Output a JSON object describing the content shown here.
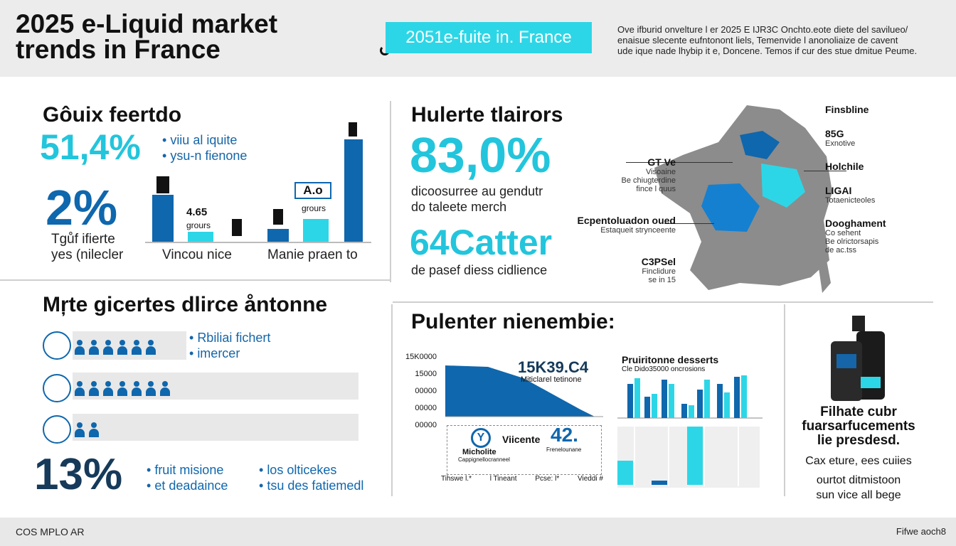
{
  "header": {
    "title_line1": "2025 e-Liquid market",
    "title_line2": "trends in France",
    "tag": "2051e-fuite in. France",
    "intro_lines": [
      "Ove ifburid onvelture l er 2025 E IJR3C Onchto.eote diete del savilueo/",
      "enaisue slecente eufntonont liels, Temenvide l anonoliaize de cavent",
      "ude ique nade lhybip it e, Doncene. Temos if cur des stue dmitue Peume."
    ]
  },
  "left_top": {
    "heading": "Gôuix feertdo",
    "stat1": "51,4%",
    "stat1_bullets": [
      "viiu al iquite",
      "ysu-n fienone"
    ],
    "stat2": "2%",
    "stat2_caption_lines": [
      "Tgůf ifierte",
      "yes (nilecler"
    ],
    "chart_labels": [
      "Vincou nice",
      "Manie praen to"
    ],
    "bar_note_value": "4.65",
    "bar_note_text": "grours",
    "badge_value": "A.o",
    "badge_text": "grours"
  },
  "left_bottom": {
    "heading": "Mŗte gicertes dlirce åntonne",
    "legend": [
      "Rbiliai fichert",
      "imercer"
    ],
    "rows": [
      6,
      7,
      2
    ],
    "stat": "13%",
    "bullets_a": [
      "fruit misione",
      "et deadaince"
    ],
    "bullets_b": [
      "los olticekes",
      "tsu des fatiemedl"
    ]
  },
  "mid_top": {
    "heading": "Hulerte tlairors",
    "stat1": "83,0%",
    "stat1_caption_lines": [
      "dicoosurree au gendutr",
      "do taleete merch"
    ],
    "stat2": "64Catter",
    "stat2_caption": "de pasef diess cidlience"
  },
  "map": {
    "left_labels": [
      {
        "title": "GT Ve",
        "lines": [
          "Visoaine",
          "Be chiugterdine",
          "fince l quus"
        ]
      },
      {
        "title": "Ecpentoluadon oued",
        "lines": [
          "Estaqueit strynceente"
        ]
      },
      {
        "title": "C3PSel",
        "lines": [
          "Finclidure",
          "se in 15"
        ]
      }
    ],
    "right_labels": [
      {
        "title": "Finsbline",
        "lines": []
      },
      {
        "title": "85G",
        "lines": [
          "Exnotive"
        ]
      },
      {
        "title": "Holchile",
        "lines": []
      },
      {
        "title": "LIGAI",
        "lines": [
          "Totaenicteoles"
        ]
      },
      {
        "title": "Dooghament",
        "lines": [
          "Co sehent",
          "Be olrictorsapis",
          "de ac.tss"
        ]
      }
    ]
  },
  "mid_bottom": {
    "heading": "Pulenter nienembie:",
    "area_value": "15K39.C4",
    "area_caption": "Miticlarel tetinone",
    "y_ticks": [
      "15K0000",
      "15000",
      "00000",
      "00000",
      "00000"
    ],
    "logo_text": "Micholite",
    "logo_sub": "Cappignellocranneel",
    "logo_label": "Viicente",
    "side_value": "42.",
    "side_caption": "Frenelounane",
    "x_ticks": [
      "Tihswe l.*",
      "l Tineant",
      "Pcse: l*",
      "Vieddi #"
    ],
    "bar_title": "Pruiritonne desserts",
    "bar_subtitle": "Cle Dido35000 oncrosions"
  },
  "right_bottom": {
    "heading_lines": [
      "Filhate cubr",
      "fuarsarfucements",
      "lie presdesd."
    ],
    "caption_lines": [
      "Cax eture, ees cuiies",
      "ourtot ditmistoon",
      "sun vice all bege"
    ]
  },
  "footer": {
    "left": "COS MPLO AR",
    "right": "Fifwe aoch8"
  },
  "colors": {
    "cyan": "#22c5dc",
    "blue": "#0f67ad",
    "navy": "#163a5a",
    "grey": "#e8e8e8"
  }
}
